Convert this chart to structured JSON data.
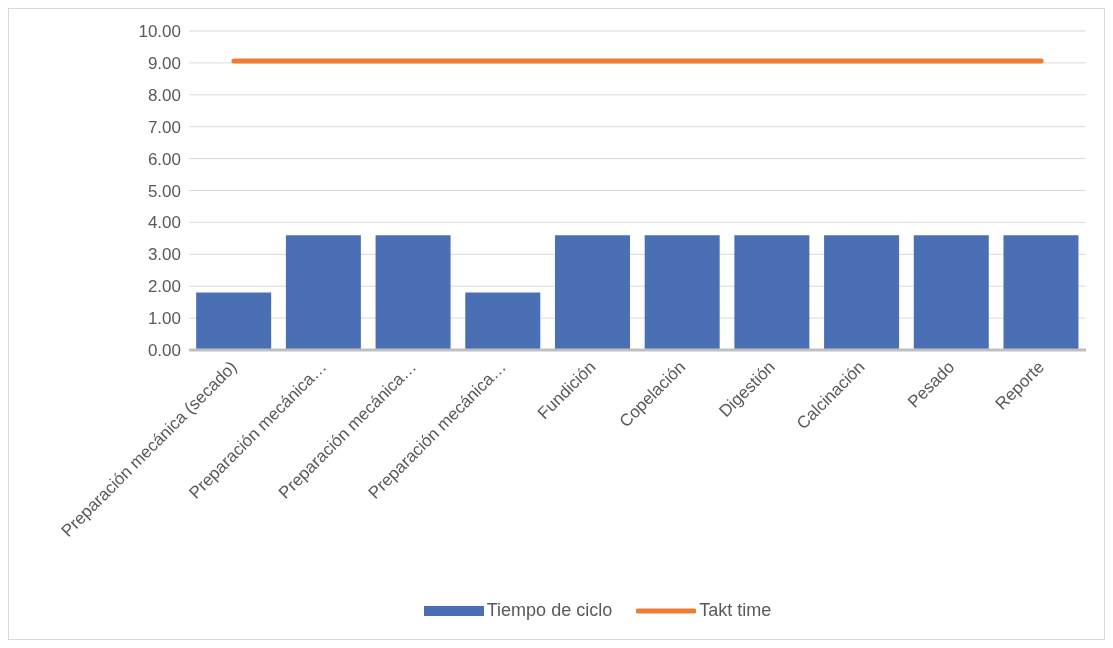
{
  "chart_data": {
    "type": "bar",
    "categories": [
      "Preparación mecánica (secado)",
      "Preparación mecánica…",
      "Preparación mecánica…",
      "Preparación mecánica…",
      "Fundición",
      "Copelación",
      "Digestión",
      "Calcinación",
      "Pesado",
      "Reporte"
    ],
    "series": [
      {
        "name": "Tiempo de ciclo",
        "color": "#4a6fb5",
        "values": [
          1.8,
          3.6,
          3.6,
          1.8,
          3.6,
          3.6,
          3.6,
          3.6,
          3.6,
          3.6
        ]
      },
      {
        "name": "Takt time",
        "type": "line",
        "color": "#ed7d31",
        "values": [
          9.06,
          9.06,
          9.06,
          9.06,
          9.06,
          9.06,
          9.06,
          9.06,
          9.06,
          9.06
        ]
      }
    ],
    "ylim": [
      0,
      10
    ],
    "yticks": [
      {
        "value": 0,
        "label": "0.00"
      },
      {
        "value": 1,
        "label": "1.00"
      },
      {
        "value": 2,
        "label": "2.00"
      },
      {
        "value": 3,
        "label": "3.00"
      },
      {
        "value": 4,
        "label": "4.00"
      },
      {
        "value": 5,
        "label": "5.00"
      },
      {
        "value": 6,
        "label": "6.00"
      },
      {
        "value": 7,
        "label": "7.00"
      },
      {
        "value": 8,
        "label": "8.00"
      },
      {
        "value": 9,
        "label": "9.00"
      },
      {
        "value": 10,
        "label": "10.00"
      }
    ],
    "grid": "y",
    "legend": "bottom",
    "marker": "none"
  }
}
